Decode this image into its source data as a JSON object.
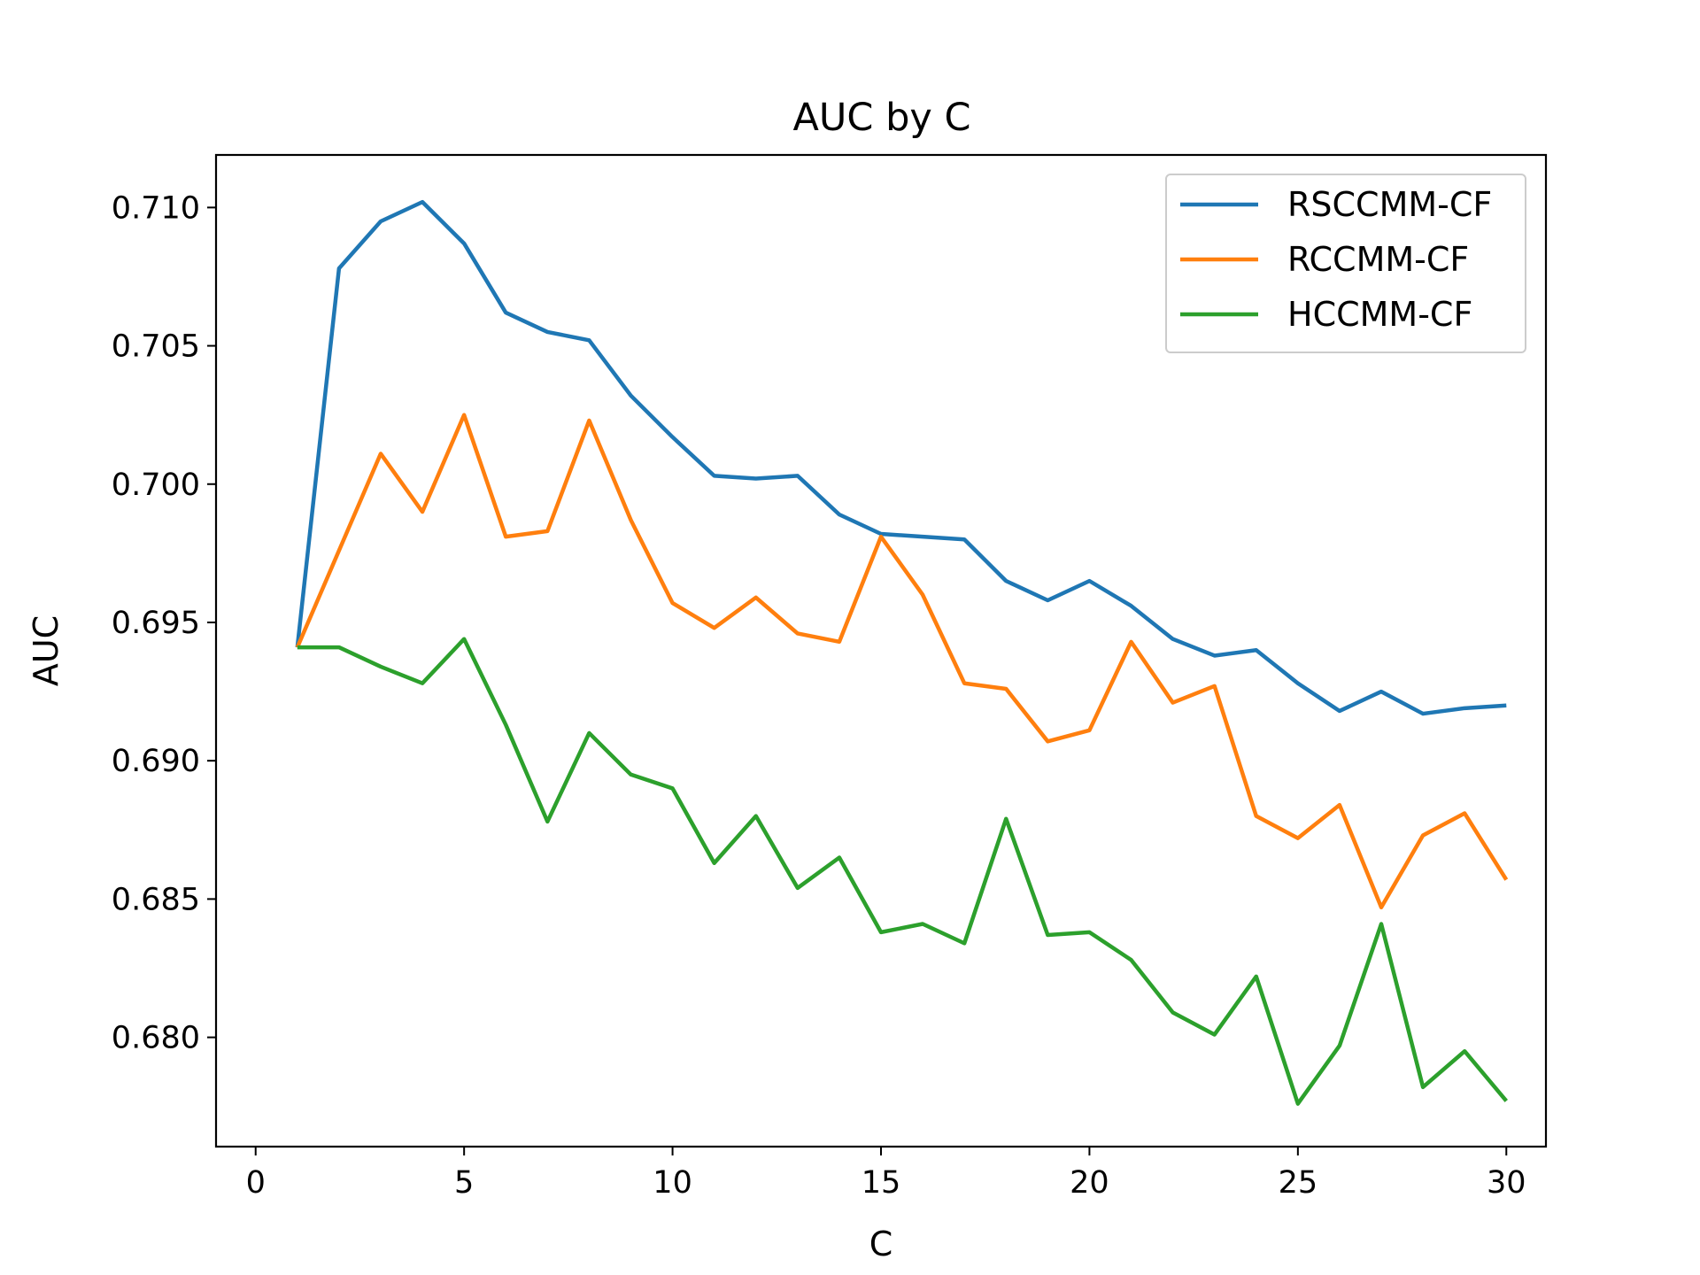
{
  "chart_data": {
    "type": "line",
    "title": "AUC by C",
    "xlabel": "C",
    "ylabel": "AUC",
    "xlim": [
      -0.95,
      30.95
    ],
    "ylim": [
      0.67605,
      0.7119
    ],
    "xticks": [
      0,
      5,
      10,
      15,
      20,
      25,
      30
    ],
    "xtick_labels": [
      "0",
      "5",
      "10",
      "15",
      "20",
      "25",
      "30"
    ],
    "yticks": [
      0.68,
      0.685,
      0.69,
      0.695,
      0.7,
      0.705,
      0.71
    ],
    "ytick_labels": [
      "0.680",
      "0.685",
      "0.690",
      "0.695",
      "0.700",
      "0.705",
      "0.710"
    ],
    "grid": false,
    "legend_position": "top-right",
    "x": [
      1,
      2,
      3,
      4,
      5,
      6,
      7,
      8,
      9,
      10,
      11,
      12,
      13,
      14,
      15,
      16,
      17,
      18,
      19,
      20,
      21,
      22,
      23,
      24,
      25,
      26,
      27,
      28,
      29,
      30
    ],
    "series": [
      {
        "name": "RSCCMM-CF",
        "color": "#1f77b4",
        "values": [
          0.6941,
          0.7078,
          0.7095,
          0.7102,
          0.7087,
          0.7062,
          0.7055,
          0.7052,
          0.7032,
          0.7017,
          0.7003,
          0.7002,
          0.7003,
          0.6989,
          0.6982,
          0.6981,
          0.698,
          0.6965,
          0.6958,
          0.6965,
          0.6956,
          0.6944,
          0.6938,
          0.694,
          0.6928,
          0.6918,
          0.6925,
          0.6917,
          0.6919,
          0.692
        ]
      },
      {
        "name": "RCCMM-CF",
        "color": "#ff7f0e",
        "values": [
          0.6941,
          0.6976,
          0.7011,
          0.699,
          0.7025,
          0.6981,
          0.6983,
          0.7023,
          0.6987,
          0.6957,
          0.6948,
          0.6959,
          0.6946,
          0.6943,
          0.6981,
          0.696,
          0.6928,
          0.6926,
          0.6907,
          0.6911,
          0.6943,
          0.6921,
          0.6927,
          0.688,
          0.6872,
          0.6884,
          0.6847,
          0.6873,
          0.6881,
          0.6857
        ]
      },
      {
        "name": "HCCMM-CF",
        "color": "#2ca02c",
        "values": [
          0.6941,
          0.6941,
          0.6934,
          0.6928,
          0.6944,
          0.6913,
          0.6878,
          0.691,
          0.6895,
          0.689,
          0.6863,
          0.688,
          0.6854,
          0.6865,
          0.6838,
          0.6841,
          0.6834,
          0.6879,
          0.6837,
          0.6838,
          0.6828,
          0.6809,
          0.6801,
          0.6822,
          0.6776,
          0.6797,
          0.6841,
          0.6782,
          0.6795,
          0.6777
        ]
      }
    ]
  }
}
